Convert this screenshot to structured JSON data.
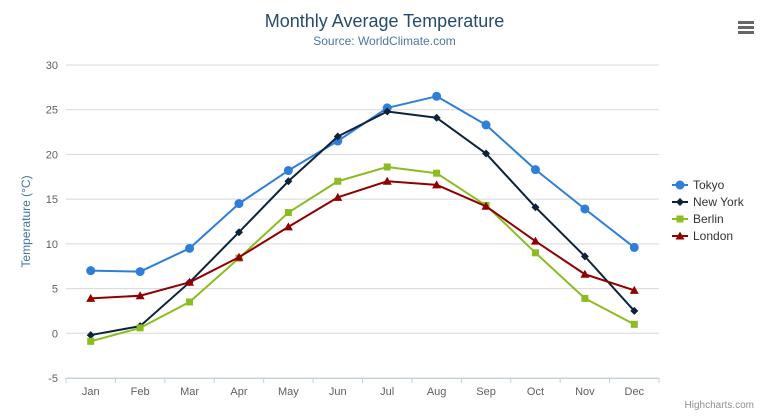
{
  "chart_data": {
    "type": "line",
    "title": "Monthly Average Temperature",
    "subtitle": "Source: WorldClimate.com",
    "categories": [
      "Jan",
      "Feb",
      "Mar",
      "Apr",
      "May",
      "Jun",
      "Jul",
      "Aug",
      "Sep",
      "Oct",
      "Nov",
      "Dec"
    ],
    "xlabel": "",
    "ylabel": "Temperature (°C)",
    "ylim": [
      -5,
      30
    ],
    "yticks": [
      -5,
      0,
      5,
      10,
      15,
      20,
      25,
      30
    ],
    "grid": true,
    "legend_position": "right",
    "series": [
      {
        "name": "Tokyo",
        "marker": "circle",
        "color": "#2f7ed8",
        "values": [
          7.0,
          6.9,
          9.5,
          14.5,
          18.2,
          21.5,
          25.2,
          26.5,
          23.3,
          18.3,
          13.9,
          9.6
        ]
      },
      {
        "name": "New York",
        "marker": "diamond",
        "color": "#0d233a",
        "values": [
          -0.2,
          0.8,
          5.7,
          11.3,
          17.0,
          22.0,
          24.8,
          24.1,
          20.1,
          14.1,
          8.6,
          2.5
        ]
      },
      {
        "name": "Berlin",
        "marker": "square",
        "color": "#8bbc21",
        "values": [
          -0.9,
          0.6,
          3.5,
          8.4,
          13.5,
          17.0,
          18.6,
          17.9,
          14.3,
          9.0,
          3.9,
          1.0
        ]
      },
      {
        "name": "London",
        "marker": "triangle",
        "color": "#910000",
        "values": [
          3.9,
          4.2,
          5.7,
          8.5,
          11.9,
          15.2,
          17.0,
          16.6,
          14.2,
          10.3,
          6.6,
          4.8
        ]
      }
    ],
    "credits": "Highcharts.com"
  },
  "icons": {
    "export_menu": "hamburger-icon"
  },
  "colors": {
    "title": "#274b6d",
    "subtitle": "#4d759e",
    "axis_title": "#4572a7",
    "tick_label": "#606060",
    "gridline": "#d8d8d8",
    "axis_line": "#c0d0e0",
    "menu_icon": "#666666",
    "credits": "#909090"
  }
}
